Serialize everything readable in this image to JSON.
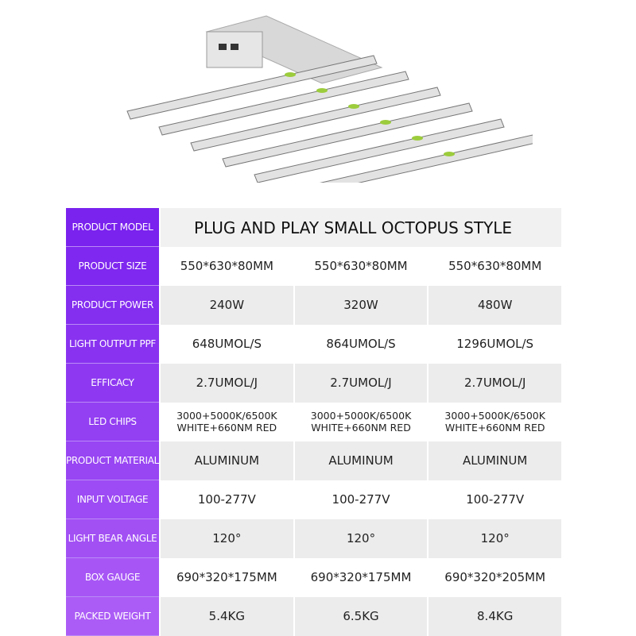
{
  "header_model_label": "PRODUCT MODEL",
  "header_model_value": "PLUG AND PLAY SMALL OCTOPUS STYLE",
  "rows": [
    {
      "label": "PRODUCT SIZE",
      "values": [
        "550*630*80MM",
        "550*630*80MM",
        "550*630*80MM"
      ]
    },
    {
      "label": "PRODUCT POWER",
      "values": [
        "240W",
        "320W",
        "480W"
      ]
    },
    {
      "label": "LIGHT OUTPUT PPF",
      "values": [
        "648UMOL/S",
        "864UMOL/S",
        "1296UMOL/S"
      ]
    },
    {
      "label": "EFFICACY",
      "values": [
        "2.7UMOL/J",
        "2.7UMOL/J",
        "2.7UMOL/J"
      ]
    },
    {
      "label": "LED CHIPS",
      "values": [
        "3000+5000K/6500K\nWHITE+660NM RED",
        "3000+5000K/6500K\nWHITE+660NM RED",
        "3000+5000K/6500K\nWHITE+660NM RED"
      ]
    },
    {
      "label": "PRODUCT MATERIAL",
      "values": [
        "ALUMINUM",
        "ALUMINUM",
        "ALUMINUM"
      ]
    },
    {
      "label": "INPUT VOLTAGE",
      "values": [
        "100-277V",
        "100-277V",
        "100-277V"
      ]
    },
    {
      "label": "LIGHT BEAR ANGLE",
      "values": [
        "120°",
        "120°",
        "120°"
      ]
    },
    {
      "label": "BOX GAUGE",
      "values": [
        "690*320*175MM",
        "690*320*175MM",
        "690*320*205MM"
      ]
    },
    {
      "label": "PACKED WEIGHT",
      "values": [
        "5.4KG",
        "6.5KG",
        "8.4KG"
      ]
    }
  ],
  "colors": {
    "purple_top": "#7a22ee",
    "purple_bottom": "#ac5cf6",
    "grey_row": "#ececec"
  }
}
